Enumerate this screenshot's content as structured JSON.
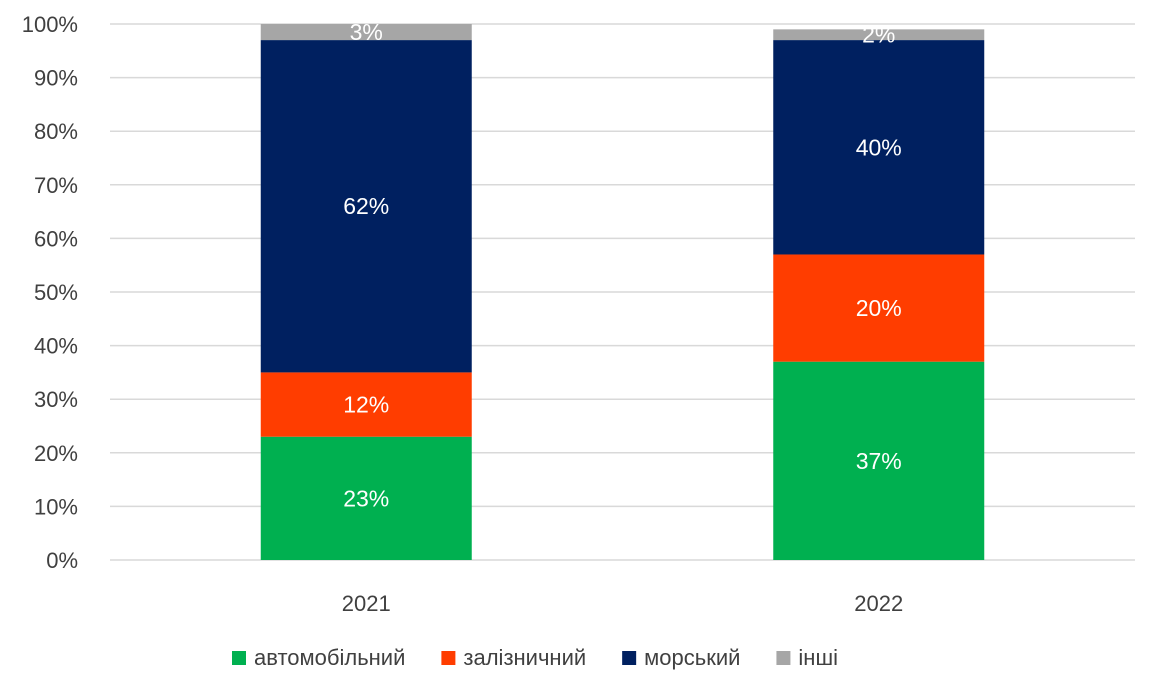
{
  "chart_data": {
    "type": "bar",
    "stacked": true,
    "percent_stacked": true,
    "title": "",
    "xlabel": "",
    "ylabel": "",
    "ylim": [
      0,
      100
    ],
    "y_ticks": [
      "0%",
      "10%",
      "20%",
      "30%",
      "40%",
      "50%",
      "60%",
      "70%",
      "80%",
      "90%",
      "100%"
    ],
    "grid": true,
    "legend": "bottom",
    "categories": [
      "2021",
      "2022"
    ],
    "series": [
      {
        "name": "автомобільний",
        "color": "#00b050",
        "values": [
          23,
          37
        ],
        "labels": [
          "23%",
          "37%"
        ]
      },
      {
        "name": "залізничний",
        "color": "#ff3d00",
        "values": [
          12,
          20
        ],
        "labels": [
          "12%",
          "20%"
        ]
      },
      {
        "name": "морський",
        "color": "#002060",
        "values": [
          62,
          40
        ],
        "labels": [
          "62%",
          "40%"
        ]
      },
      {
        "name": "інші",
        "color": "#a6a6a6",
        "values": [
          3,
          2
        ],
        "labels": [
          "3%",
          "2%"
        ]
      }
    ]
  }
}
